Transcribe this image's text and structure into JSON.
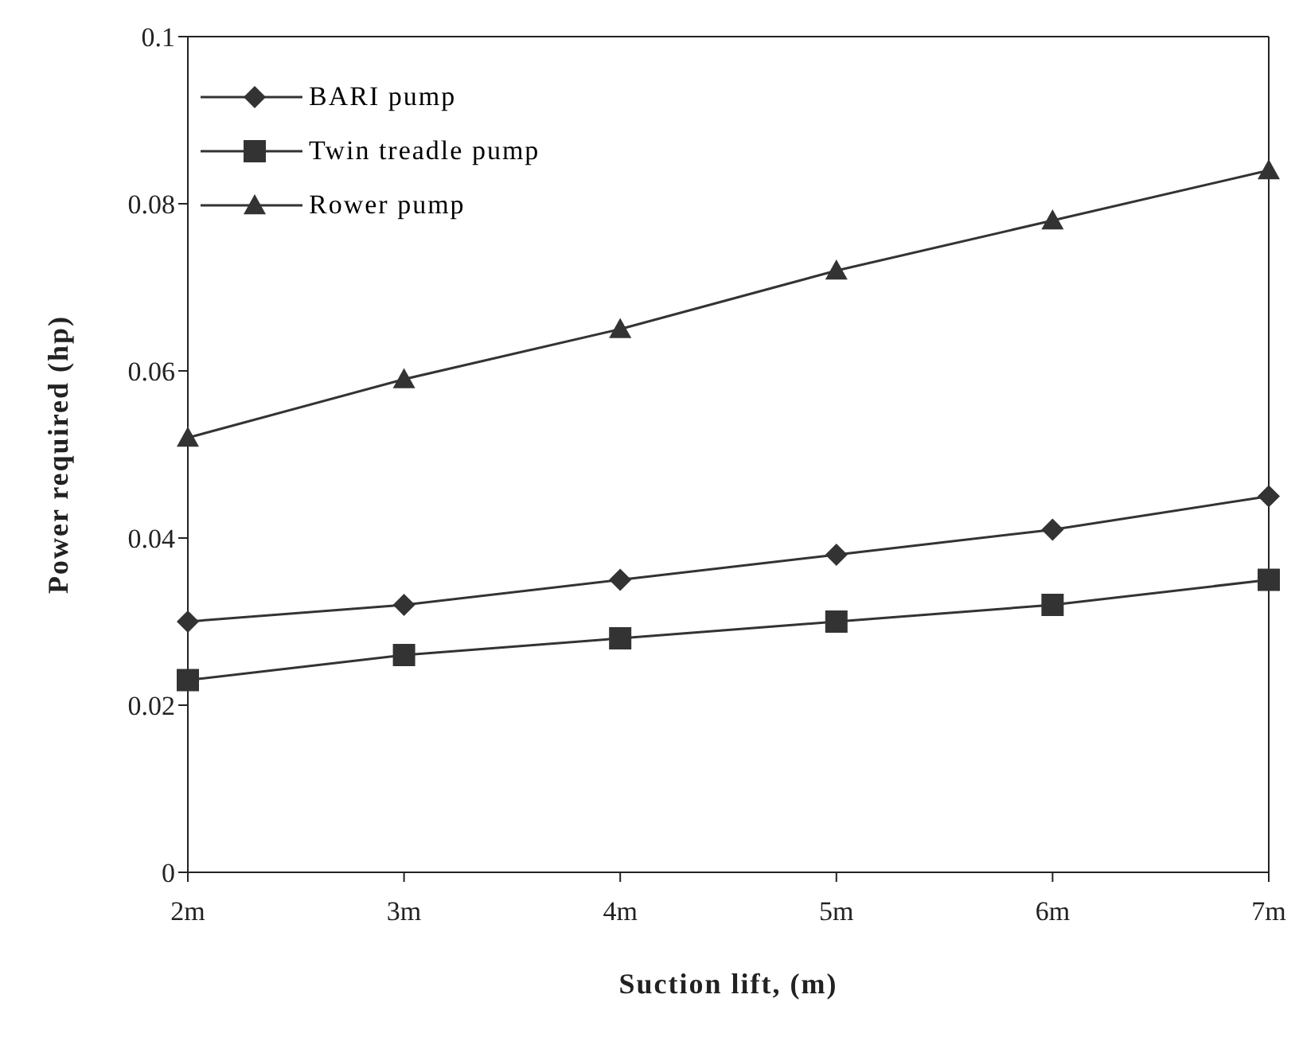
{
  "chart_data": {
    "type": "line",
    "xlabel": "Suction lift, (m)",
    "ylabel": "Power required (hp)",
    "categories": [
      "2m",
      "3m",
      "4m",
      "5m",
      "6m",
      "7m"
    ],
    "series": [
      {
        "name": "BARI pump",
        "color": "#333333",
        "marker": "diamond",
        "values": [
          0.03,
          0.032,
          0.035,
          0.038,
          0.041,
          0.045
        ]
      },
      {
        "name": "Twin treadle pump",
        "color": "#333333",
        "marker": "square",
        "values": [
          0.023,
          0.026,
          0.028,
          0.03,
          0.032,
          0.035
        ]
      },
      {
        "name": "Rower pump",
        "color": "#333333",
        "marker": "triangle",
        "values": [
          0.052,
          0.059,
          0.065,
          0.072,
          0.078,
          0.084
        ]
      }
    ],
    "ylim": [
      0,
      0.1
    ],
    "yticks": [
      0,
      0.02,
      0.04,
      0.06,
      0.08,
      0.1
    ],
    "grid": false,
    "legend": "top left"
  }
}
